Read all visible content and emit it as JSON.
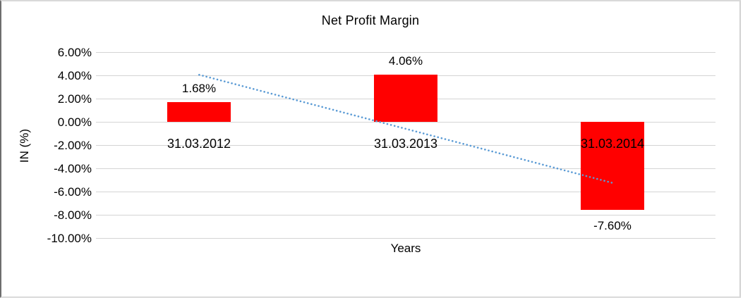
{
  "window": {
    "background": "#ffffff",
    "frame_border_dark": "#6e6e6e",
    "frame_border_light": "#d9d9d9"
  },
  "chart_data": {
    "type": "bar",
    "title": "Net Profit Margin",
    "xlabel": "Years",
    "ylabel": "IN (%)",
    "categories": [
      "31.03.2012",
      "31.03.2013",
      "31.03.2014"
    ],
    "values": [
      1.68,
      4.06,
      -7.6
    ],
    "value_labels": [
      "1.68%",
      "4.06%",
      "-7.60%"
    ],
    "ylim": [
      -10,
      6
    ],
    "ytick_step": 2,
    "ytick_labels": [
      "6.00%",
      "4.00%",
      "2.00%",
      "0.00%",
      "-2.00%",
      "-4.00%",
      "-6.00%",
      "-8.00%",
      "-10.00%"
    ],
    "grid": true,
    "legend": "none",
    "bar_color": "#ff0000",
    "gridline_color": "#d4d4d4",
    "text_color": "#000000",
    "trendline": {
      "type": "linear",
      "style": "dotted",
      "color": "#5b9bd5",
      "start_value": 4.05,
      "end_value": -5.25
    }
  }
}
